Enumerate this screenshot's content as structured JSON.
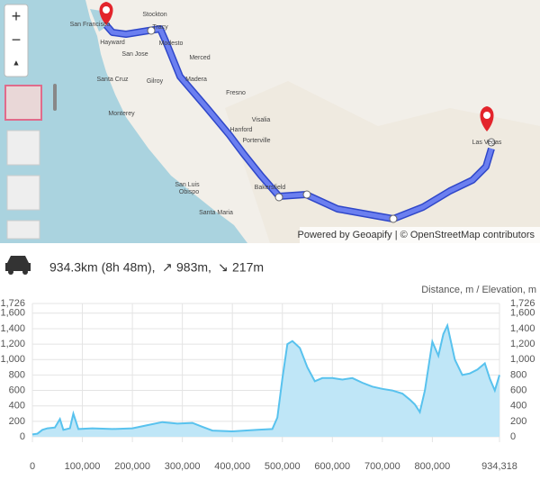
{
  "map": {
    "controls": {
      "zoom_in": "+",
      "zoom_out": "−",
      "compass": "▲"
    },
    "labels": [
      "Stockton",
      "Tracy",
      "Modesto",
      "San Jose",
      "Hayward",
      "Merced",
      "Santa Cruz",
      "Gilroy",
      "Madera",
      "Monterey",
      "Fresno",
      "Visalia",
      "Hanford",
      "Porterville",
      "San Luis",
      "Obispo",
      "Santa Maria",
      "Bakersfield",
      "Las Vegas",
      "San Francisco"
    ],
    "attribution": "Powered by Geoapify | © OpenStreetMap contributors"
  },
  "summary": {
    "distance": "934.3km (8h 48m),",
    "ascent": "983m,",
    "descent": "217m"
  },
  "chart_data": {
    "type": "area",
    "title": "Distance, m / Elevation, m",
    "x": [
      0,
      10000,
      20000,
      30000,
      45000,
      55000,
      62000,
      75000,
      82000,
      92000,
      120000,
      160000,
      200000,
      230000,
      260000,
      290000,
      320000,
      340000,
      360000,
      400000,
      450000,
      480000,
      490000,
      500000,
      510000,
      520000,
      535000,
      550000,
      565000,
      580000,
      600000,
      620000,
      640000,
      660000,
      680000,
      700000,
      720000,
      740000,
      755000,
      765000,
      775000,
      785000,
      800000,
      812000,
      822000,
      830000,
      845000,
      860000,
      875000,
      890000,
      905000,
      915000,
      925000,
      934318
    ],
    "series": [
      {
        "name": "Elevation",
        "color": "#58c2ee",
        "fill": "#bfe6f7",
        "values": [
          30,
          40,
          90,
          110,
          120,
          230,
          90,
          110,
          300,
          100,
          110,
          100,
          110,
          150,
          190,
          170,
          180,
          130,
          80,
          70,
          90,
          100,
          250,
          750,
          1200,
          1240,
          1150,
          900,
          720,
          760,
          760,
          740,
          760,
          700,
          650,
          620,
          600,
          560,
          480,
          420,
          320,
          600,
          1230,
          1050,
          1330,
          1440,
          1000,
          800,
          820,
          870,
          950,
          750,
          600,
          800
        ]
      }
    ],
    "xlim": [
      0,
      934318
    ],
    "ylim": [
      0,
      1726
    ],
    "xticks": [
      0,
      {
        "value": 100000,
        "label": "100,000"
      },
      {
        "value": 200000,
        "label": "200,000"
      },
      {
        "value": 300000,
        "label": "300,000"
      },
      {
        "value": 400000,
        "label": "400,000"
      },
      {
        "value": 500000,
        "label": "500,000"
      },
      {
        "value": 600000,
        "label": "600,000"
      },
      {
        "value": 700000,
        "label": "700,000"
      },
      {
        "value": 800000,
        "label": "800,000"
      },
      {
        "value": 934318,
        "label": "934,318"
      }
    ],
    "yticks": [
      0,
      200,
      400,
      600,
      800,
      {
        "value": 1000,
        "label": "1,000"
      },
      {
        "value": 1200,
        "label": "1,200"
      },
      {
        "value": 1400,
        "label": "1,400"
      },
      {
        "value": 1600,
        "label": "1,600"
      },
      {
        "value": 1726,
        "label": "1,726"
      }
    ],
    "grid": true
  }
}
